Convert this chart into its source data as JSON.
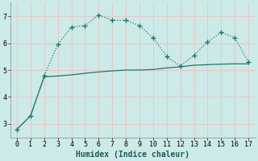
{
  "line1_x": [
    0,
    1,
    2,
    3,
    4,
    5,
    6,
    7,
    8,
    9,
    10,
    11,
    12,
    13,
    14,
    15,
    16,
    17
  ],
  "line1_y": [
    2.8,
    3.3,
    4.8,
    5.95,
    6.6,
    6.65,
    7.05,
    6.85,
    6.85,
    6.65,
    6.2,
    5.5,
    5.15,
    5.55,
    6.05,
    6.4,
    6.2,
    5.3
  ],
  "line2_x": [
    0,
    1,
    2,
    3,
    4,
    5,
    6,
    7,
    8,
    9,
    10,
    11,
    12,
    13,
    14,
    15,
    16,
    17
  ],
  "line2_y": [
    2.8,
    3.3,
    4.75,
    4.78,
    4.82,
    4.88,
    4.93,
    4.97,
    5.0,
    5.0,
    5.02,
    5.08,
    5.12,
    5.18,
    5.2,
    5.22,
    5.23,
    5.23
  ],
  "line_color": "#1a7a6a",
  "bg_color": "#cceae8",
  "grid_color": "#e8c8c8",
  "xlabel": "Humidex (Indice chaleur)",
  "xlim": [
    -0.5,
    17.5
  ],
  "ylim": [
    2.5,
    7.5
  ],
  "yticks": [
    3,
    4,
    5,
    6,
    7
  ],
  "xticks": [
    0,
    1,
    2,
    3,
    4,
    5,
    6,
    7,
    8,
    9,
    10,
    11,
    12,
    13,
    14,
    15,
    16,
    17
  ],
  "marker": "+",
  "markersize": 4,
  "linewidth": 0.9,
  "markeredgewidth": 1.0
}
